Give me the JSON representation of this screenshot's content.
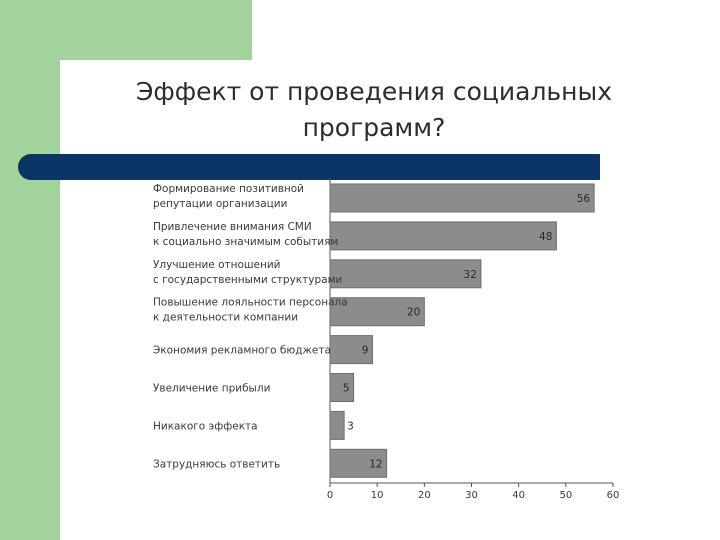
{
  "title_lines": [
    "Эффект от проведения социальных",
    "программ?"
  ],
  "colors": {
    "green": "#a3d39c",
    "navy": "#0a3566",
    "bar_fill": "#8c8c8c",
    "bar_stroke": "#6e6e6e"
  },
  "chart_data": {
    "type": "bar",
    "orientation": "horizontal",
    "categories": [
      [
        "Формирование позитивной",
        "репутации организации"
      ],
      [
        "Привлечение внимания СМИ",
        "к социально значимым событиям"
      ],
      [
        "Улучшение отношений",
        "с государственными структурами"
      ],
      [
        "Повышение лояльности персонала",
        "к деятельности компании"
      ],
      [
        "Экономия рекламного бюджета"
      ],
      [
        "Увеличение прибыли"
      ],
      [
        "Никакого эффекта"
      ],
      [
        "Затрудняюсь ответить"
      ]
    ],
    "values": [
      56,
      48,
      32,
      20,
      9,
      5,
      3,
      12
    ],
    "xlim": [
      0,
      60
    ],
    "xticks": [
      0,
      10,
      20,
      30,
      40,
      50,
      60
    ],
    "grid": false
  }
}
